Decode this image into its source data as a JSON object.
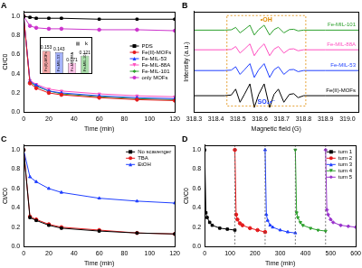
{
  "chart_data": [
    {
      "type": "line",
      "title": "A",
      "x_label": "Time (min)",
      "y_label": "Ct/C0",
      "x": [
        0,
        5,
        10,
        20,
        30,
        60,
        90,
        120
      ],
      "xlim": [
        0,
        120
      ],
      "xticks": [
        0,
        20,
        40,
        60,
        80,
        100,
        120
      ],
      "ylim": [
        0,
        1.05
      ],
      "yticks": [
        {
          "value": 0,
          "label": "0.0"
        },
        0.2,
        0.4,
        0.6,
        0.8,
        {
          "value": 1,
          "label": "1.0"
        }
      ],
      "legend": "center right",
      "grid": false,
      "series": [
        {
          "name": "PDS",
          "color": "#000000",
          "marker": "square",
          "values": [
            1,
            0.99,
            0.98,
            0.98,
            0.98,
            0.97,
            0.97,
            0.97
          ]
        },
        {
          "name": "Fe(II)-MOFs",
          "color": "#e41a1c",
          "marker": "circle",
          "values": [
            1,
            0.3,
            0.25,
            0.2,
            0.18,
            0.15,
            0.13,
            0.12
          ]
        },
        {
          "name": "Fe-MIL-53",
          "color": "#1f3fff",
          "marker": "triangle",
          "values": [
            1,
            0.32,
            0.28,
            0.22,
            0.2,
            0.17,
            0.15,
            0.14
          ]
        },
        {
          "name": "Fe-MIL-88A",
          "color": "#ff4fc0",
          "marker": "triangle_down",
          "values": [
            1,
            0.33,
            0.29,
            0.24,
            0.22,
            0.19,
            0.17,
            0.16
          ]
        },
        {
          "name": "Fe-MIL-101",
          "color": "#2ca02c",
          "marker": "diamond",
          "values": [
            1,
            0.31,
            0.27,
            0.22,
            0.19,
            0.16,
            0.14,
            0.13
          ]
        },
        {
          "name": "only MOFs",
          "color": "#cc33cc",
          "marker": "circle",
          "values": [
            1,
            0.9,
            0.88,
            0.87,
            0.87,
            0.86,
            0.86,
            0.85
          ]
        }
      ]
    },
    {
      "type": "bar",
      "categories": [
        "Fe(II)-MOFs",
        "Fe-MIL-53",
        "Fe-MIL-88A",
        "Fe-MIL-101"
      ],
      "series": [
        {
          "name": "k",
          "values": [
            0.153,
            0.143,
            0.071,
            0.121
          ]
        }
      ],
      "colors": [
        "#f4a6a6",
        "#a6b4ff",
        "#ffc2e8",
        "#a8dca8"
      ],
      "ylim": [
        0,
        0.25
      ],
      "tick_labels": false,
      "data_labels": true,
      "legend": "upper right"
    },
    {
      "type": "line",
      "title": "B",
      "x_label": "Magnetic field (G)",
      "y_label": "Intensity (a.u.)",
      "x": [
        318.3,
        318.44,
        318.47,
        318.49,
        318.51,
        318.53,
        318.555,
        318.575,
        318.595,
        318.62,
        318.645,
        318.665,
        318.685,
        318.71,
        318.735,
        318.755,
        318.775,
        318.8,
        318.9,
        319.05
      ],
      "xlim": [
        318.3,
        319.05
      ],
      "xticks": [
        318.3,
        318.4,
        318.5,
        318.6,
        318.7,
        318.8,
        318.9,
        {
          "value": 319,
          "label": "319.0"
        }
      ],
      "ylim": [
        0,
        9.2
      ],
      "tick_labels": "x",
      "legend": "right",
      "grid": false,
      "annotations": [
        "•OH",
        "SO₄•⁻"
      ],
      "series": [
        {
          "name": "Fe-MIL-101",
          "color": "#2ca02c",
          "values": [
            7.5,
            7.5,
            7.53,
            7.75,
            7.25,
            7.55,
            7.95,
            7.05,
            7.55,
            7.95,
            7.05,
            7.55,
            7.75,
            7.25,
            7.55,
            7.58,
            7.43,
            7.5,
            7.5,
            7.5
          ]
        },
        {
          "name": "Fe-MIL-88A",
          "color": "#ff4fc0",
          "values": [
            5.7,
            5.7,
            5.73,
            6.0,
            5.4,
            5.76,
            6.24,
            5.16,
            5.76,
            6.24,
            5.16,
            5.76,
            6.0,
            5.4,
            5.76,
            5.79,
            5.61,
            5.7,
            5.7,
            5.7
          ]
        },
        {
          "name": "Fe-MIL-53",
          "color": "#1f3fff",
          "values": [
            3.8,
            3.8,
            3.84,
            4.15,
            3.45,
            3.87,
            4.43,
            3.17,
            3.87,
            4.43,
            3.17,
            3.87,
            4.15,
            3.45,
            3.87,
            3.9,
            3.7,
            3.8,
            3.8,
            3.8
          ]
        },
        {
          "name": "Fe(II)-MOFs",
          "color": "#000000",
          "values": [
            1.5,
            1.5,
            1.56,
            2.1,
            0.9,
            1.62,
            2.58,
            0.42,
            1.62,
            2.58,
            0.42,
            1.62,
            2.1,
            0.9,
            1.62,
            1.68,
            1.32,
            1.5,
            1.5,
            1.5
          ]
        }
      ]
    },
    {
      "type": "line",
      "title": "C",
      "x_label": "Time (min)",
      "y_label": "Ct/C0",
      "x": [
        0,
        5,
        10,
        20,
        30,
        60,
        90,
        120
      ],
      "xlim": [
        0,
        120
      ],
      "xticks": [
        0,
        20,
        40,
        60,
        80,
        100,
        120
      ],
      "ylim": [
        0,
        1.05
      ],
      "yticks": [
        {
          "value": 0,
          "label": "0.0"
        },
        0.2,
        0.4,
        0.6,
        0.8,
        {
          "value": 1,
          "label": "1.0"
        }
      ],
      "legend": "upper right",
      "grid": false,
      "series": [
        {
          "name": "No scavenger",
          "color": "#000000",
          "marker": "square",
          "values": [
            1,
            0.3,
            0.27,
            0.22,
            0.19,
            0.16,
            0.14,
            0.13
          ]
        },
        {
          "name": "TBA",
          "color": "#e41a1c",
          "marker": "circle",
          "values": [
            1,
            0.31,
            0.28,
            0.23,
            0.2,
            0.17,
            0.14,
            0.13
          ]
        },
        {
          "name": "EtOH",
          "color": "#1f3fff",
          "marker": "triangle",
          "values": [
            1,
            0.72,
            0.67,
            0.6,
            0.56,
            0.5,
            0.47,
            0.45
          ]
        }
      ]
    },
    {
      "type": "line",
      "title": "D",
      "x_label": "Time (min)",
      "y_label": "Ct/C0",
      "xlim": [
        0,
        600
      ],
      "xticks": [
        0,
        100,
        200,
        300,
        400,
        500,
        600
      ],
      "ylim": [
        0,
        1.05
      ],
      "yticks": [
        {
          "value": 0,
          "label": "0.0"
        },
        0.2,
        0.4,
        0.6,
        0.8,
        {
          "value": 1,
          "label": "1.0"
        }
      ],
      "legend": "upper right",
      "grid": false,
      "series": [
        {
          "name": "turn 1",
          "color": "#000000",
          "marker": "square",
          "x": [
            0,
            5,
            10,
            20,
            30,
            60,
            90,
            120
          ],
          "values": [
            1,
            0.35,
            0.3,
            0.25,
            0.22,
            0.19,
            0.18,
            0.17
          ]
        },
        {
          "name": "turn 2",
          "color": "#e41a1c",
          "marker": "circle",
          "x": [
            120,
            125,
            130,
            140,
            150,
            180,
            210,
            240
          ],
          "values": [
            1,
            0.33,
            0.28,
            0.24,
            0.22,
            0.19,
            0.17,
            0.15
          ]
        },
        {
          "name": "turn 3",
          "color": "#1f3fff",
          "marker": "triangle",
          "x": [
            240,
            245,
            250,
            260,
            270,
            300,
            330,
            360
          ],
          "values": [
            1,
            0.33,
            0.27,
            0.22,
            0.2,
            0.17,
            0.15,
            0.14
          ]
        },
        {
          "name": "turn 4",
          "color": "#2ca02c",
          "marker": "triangle_down",
          "x": [
            360,
            365,
            370,
            380,
            390,
            420,
            450,
            480
          ],
          "values": [
            1,
            0.35,
            0.3,
            0.25,
            0.22,
            0.19,
            0.17,
            0.16
          ]
        },
        {
          "name": "turn 5",
          "color": "#9933cc",
          "marker": "diamond",
          "x": [
            480,
            485,
            490,
            500,
            510,
            540,
            570,
            600
          ],
          "values": [
            1,
            0.38,
            0.33,
            0.28,
            0.25,
            0.22,
            0.21,
            0.2
          ]
        }
      ]
    }
  ]
}
